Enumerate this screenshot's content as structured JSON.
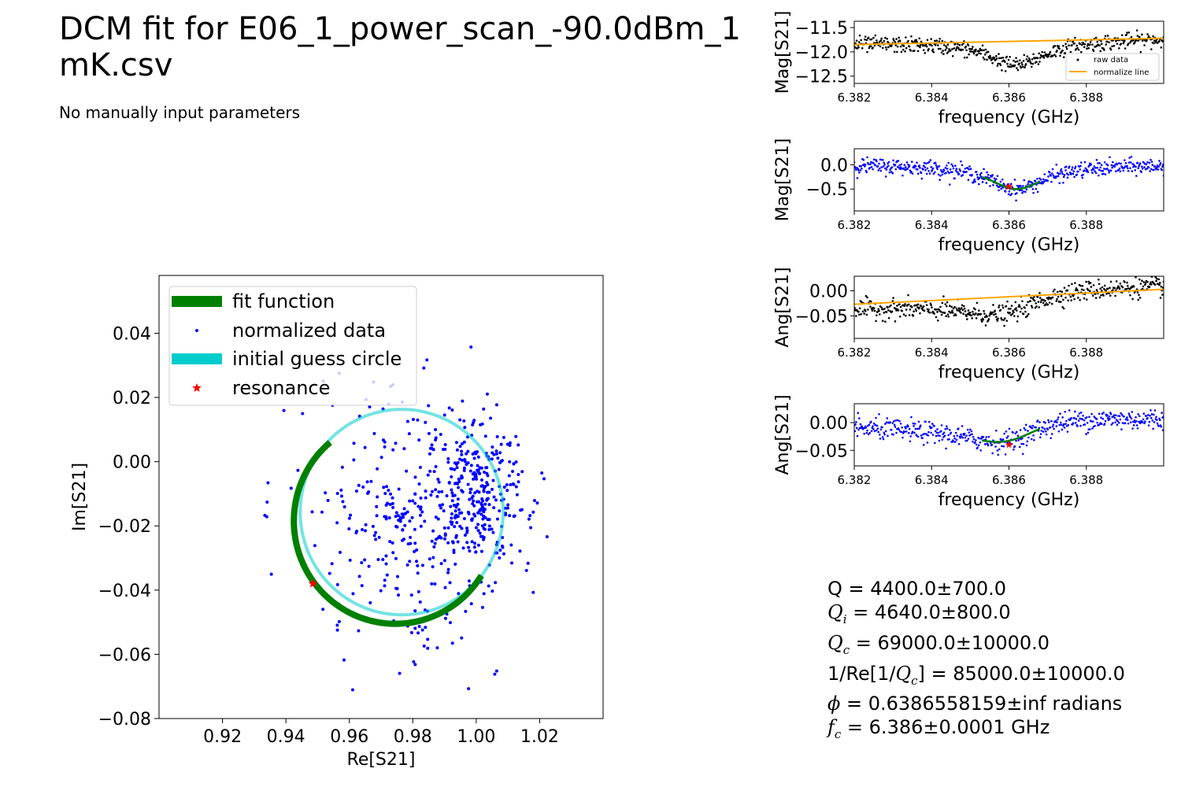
{
  "page": {
    "title": "DCM fit for E06_1_power_scan_-90.0dBm_1 mK.csv",
    "subtitle": "No manually input parameters"
  },
  "colors": {
    "raw": "#000000",
    "normalized": "#0000ff",
    "normalize_line": "#ffa500",
    "fit": "#008000",
    "guess_circle": "#00cccc",
    "resonance": "#ff0000"
  },
  "chart_data": [
    {
      "id": "iq",
      "type": "scatter",
      "xlabel": "Re[S21]",
      "ylabel": "Im[S21]",
      "xlim": [
        0.9,
        1.04
      ],
      "ylim": [
        -0.08,
        0.058
      ],
      "xticks": [
        "0.92",
        "0.94",
        "0.96",
        "0.98",
        "1.00",
        "1.02"
      ],
      "xtick_values": [
        0.92,
        0.94,
        0.96,
        0.98,
        1.0,
        1.02
      ],
      "yticks": [
        "0.04",
        "0.02",
        "0.00",
        "−0.02",
        "−0.04",
        "−0.06",
        "−0.08"
      ],
      "ytick_values": [
        0.04,
        0.02,
        0.0,
        -0.02,
        -0.04,
        -0.06,
        -0.08
      ],
      "legend": [
        "fit function",
        "normalized data",
        "initial guess circle",
        "resonance"
      ],
      "legend_position": "upper-left",
      "fit_circle": {
        "center": [
          0.9745,
          -0.0185
        ],
        "radius": 0.032,
        "from_deg": 130,
        "to_deg": 330
      },
      "guess_circle": {
        "center": [
          0.9765,
          -0.0157
        ],
        "radius": 0.032
      },
      "resonance": [
        0.9485,
        -0.038
      ]
    },
    {
      "id": "mag-raw",
      "type": "scatter",
      "xlabel": "frequency (GHz)",
      "ylabel": "Mag[S21]",
      "xlim": [
        6.382,
        6.39
      ],
      "ylim": [
        -12.65,
        -11.37
      ],
      "xticks": [
        "6.382",
        "6.384",
        "6.386",
        "6.388"
      ],
      "yticks": [
        "−11.5",
        "−12.0",
        "−12.5"
      ],
      "ytick_values": [
        -11.5,
        -12.0,
        -12.5
      ],
      "legend": [
        "raw data",
        "normalize line"
      ],
      "legend_position": "lower-right",
      "normalize_line": [
        [
          6.382,
          -11.85
        ],
        [
          6.39,
          -11.72
        ]
      ],
      "dip": {
        "center": 6.3862,
        "depth": 0.5,
        "width": 0.0009,
        "baseline_start": -11.83,
        "baseline_end": -11.72,
        "noise": 0.1
      }
    },
    {
      "id": "mag-norm",
      "type": "scatter",
      "xlabel": "frequency (GHz)",
      "ylabel": "Mag[S21]",
      "xlim": [
        6.382,
        6.39
      ],
      "ylim": [
        -0.95,
        0.33
      ],
      "xticks": [
        "6.382",
        "6.384",
        "6.386",
        "6.388"
      ],
      "yticks": [
        "0.0",
        "−0.5"
      ],
      "ytick_values": [
        0.0,
        -0.5
      ],
      "fit_range": [
        6.3853,
        6.3868
      ],
      "resonance": [
        6.386,
        -0.45
      ],
      "dip": {
        "center": 6.3862,
        "depth": 0.5,
        "width": 0.0009,
        "baseline_start": 0.0,
        "baseline_end": 0.0,
        "noise": 0.1
      }
    },
    {
      "id": "ang-raw",
      "type": "scatter",
      "xlabel": "frequency (GHz)",
      "ylabel": "Ang[S21]",
      "xlim": [
        6.382,
        6.39
      ],
      "ylim": [
        -0.095,
        0.029
      ],
      "xticks": [
        "6.382",
        "6.384",
        "6.386",
        "6.388"
      ],
      "yticks": [
        "0.00",
        "−0.05"
      ],
      "ytick_values": [
        0.0,
        -0.05
      ],
      "normalize_line": [
        [
          6.382,
          -0.027
        ],
        [
          6.39,
          0.003
        ]
      ],
      "dispersive": {
        "center": 6.3862,
        "amplitude": -0.032,
        "width": 0.0012,
        "baseline_start": -0.027,
        "baseline_end": 0.003,
        "noise": 0.012
      }
    },
    {
      "id": "ang-norm",
      "type": "scatter",
      "xlabel": "frequency (GHz)",
      "ylabel": "Ang[S21]",
      "xlim": [
        6.382,
        6.39
      ],
      "ylim": [
        -0.078,
        0.034
      ],
      "xticks": [
        "6.382",
        "6.384",
        "6.386",
        "6.388"
      ],
      "yticks": [
        "0.00",
        "−0.05"
      ],
      "ytick_values": [
        0.0,
        -0.05
      ],
      "fit_range": [
        6.3853,
        6.3868
      ],
      "resonance": [
        6.386,
        -0.04
      ],
      "dispersive": {
        "center": 6.3862,
        "amplitude": -0.032,
        "width": 0.0012,
        "baseline_start": 0.0,
        "baseline_end": 0.0,
        "noise": 0.012
      }
    }
  ],
  "results": {
    "q": "Q = 4400.0±700.0",
    "qi_label": "Q",
    "qi_sub": "i",
    "qi_value": " = 4640.0±800.0",
    "qc_label": "Q",
    "qc_sub": "c",
    "qc_value": " = 69000.0±10000.0",
    "qc_re_prefix": "1/Re[1/",
    "qc_re_label": "Q",
    "qc_re_sub": "c",
    "qc_re_value": "] = 85000.0±10000.0",
    "phi_label": "ϕ",
    "phi_value": " = 0.6386558159±inf radians",
    "fc_label": "f",
    "fc_sub": "c",
    "fc_value": " = 6.386±0.0001 GHz"
  }
}
